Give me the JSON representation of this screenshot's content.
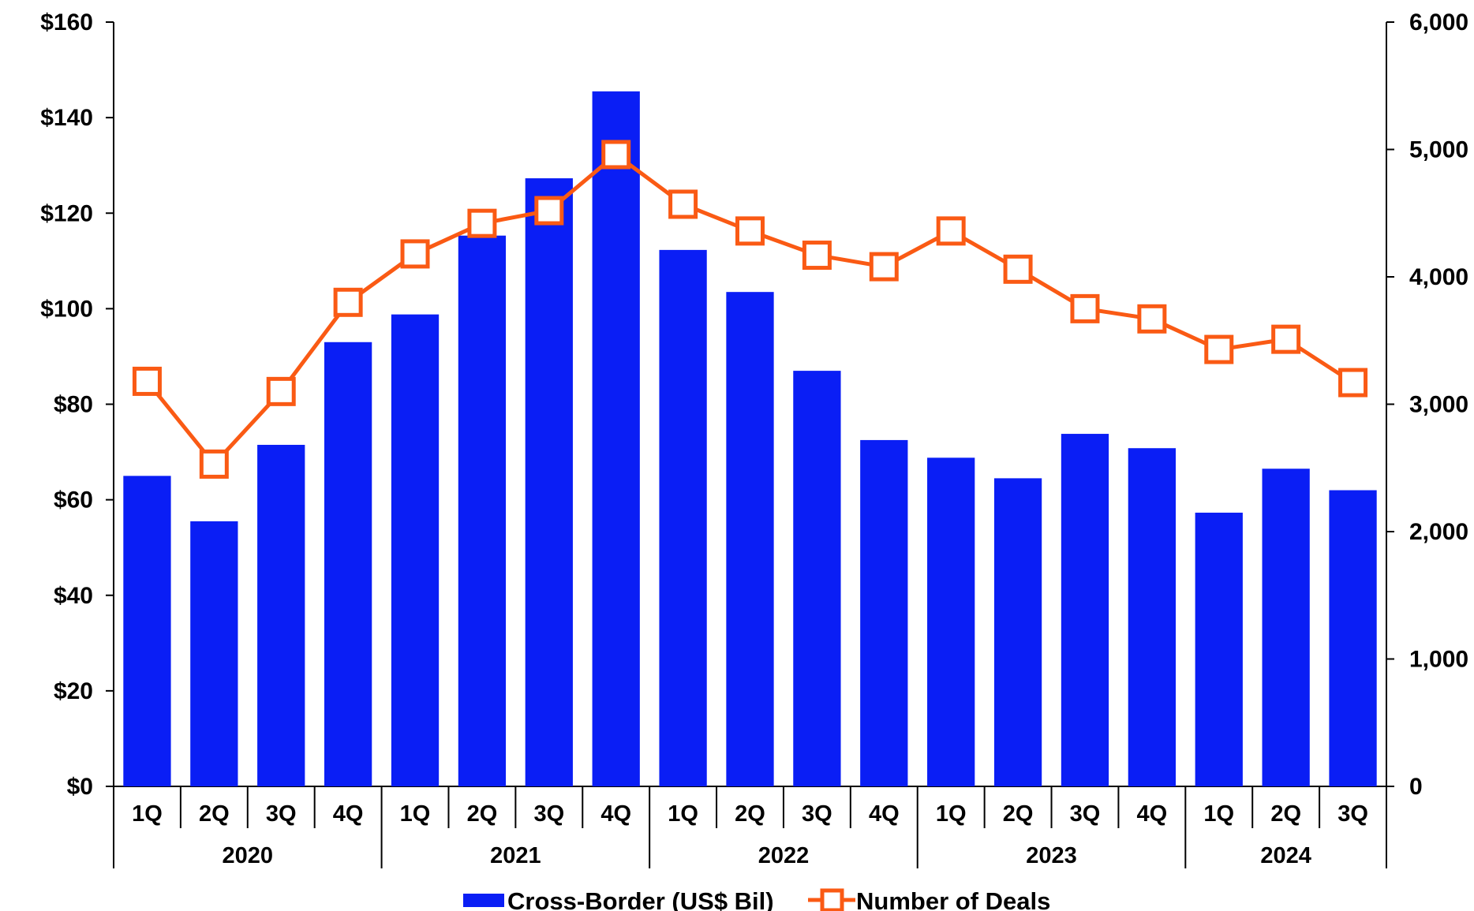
{
  "chart_data": {
    "type": "bar",
    "years": [
      "2020",
      "2021",
      "2022",
      "2023",
      "2024"
    ],
    "categories": [
      {
        "quarter": "1Q",
        "year": "2020"
      },
      {
        "quarter": "2Q",
        "year": "2020"
      },
      {
        "quarter": "3Q",
        "year": "2020"
      },
      {
        "quarter": "4Q",
        "year": "2020"
      },
      {
        "quarter": "1Q",
        "year": "2021"
      },
      {
        "quarter": "2Q",
        "year": "2021"
      },
      {
        "quarter": "3Q",
        "year": "2021"
      },
      {
        "quarter": "4Q",
        "year": "2021"
      },
      {
        "quarter": "1Q",
        "year": "2022"
      },
      {
        "quarter": "2Q",
        "year": "2022"
      },
      {
        "quarter": "3Q",
        "year": "2022"
      },
      {
        "quarter": "4Q",
        "year": "2022"
      },
      {
        "quarter": "1Q",
        "year": "2023"
      },
      {
        "quarter": "2Q",
        "year": "2023"
      },
      {
        "quarter": "3Q",
        "year": "2023"
      },
      {
        "quarter": "4Q",
        "year": "2023"
      },
      {
        "quarter": "1Q",
        "year": "2024"
      },
      {
        "quarter": "2Q",
        "year": "2024"
      },
      {
        "quarter": "3Q",
        "year": "2024"
      }
    ],
    "series": [
      {
        "name": "Cross-Border (US$ Bil)",
        "type": "bar",
        "axis": "left",
        "color": "#0a1ef5",
        "values": [
          65,
          55.5,
          71.5,
          93,
          98.8,
          115.3,
          127.3,
          145.5,
          112.3,
          103.5,
          87,
          72.5,
          68.8,
          64.5,
          73.8,
          70.8,
          57.3,
          66.5,
          62
        ]
      },
      {
        "name": "Number of Deals",
        "type": "line",
        "axis": "right",
        "color": "#fa5a14",
        "marker": "hollow-square",
        "values": [
          3180,
          2530,
          3100,
          3800,
          4180,
          4420,
          4520,
          4960,
          4570,
          4360,
          4170,
          4080,
          4360,
          4060,
          3750,
          3670,
          3430,
          3510,
          3170
        ]
      }
    ],
    "y_left": {
      "range": [
        0,
        160
      ],
      "ticks": [
        0,
        20,
        40,
        60,
        80,
        100,
        120,
        140,
        160
      ],
      "tick_labels": [
        "$0",
        "$20",
        "$40",
        "$60",
        "$80",
        "$100",
        "$120",
        "$140",
        "$160"
      ]
    },
    "y_right": {
      "range": [
        0,
        6000
      ],
      "ticks": [
        0,
        1000,
        2000,
        3000,
        4000,
        5000,
        6000
      ],
      "tick_labels": [
        "0",
        "1,000",
        "2,000",
        "3,000",
        "4,000",
        "5,000",
        "6,000"
      ]
    },
    "title": "",
    "xlabel": "",
    "ylabel": "",
    "grid": false,
    "legend_position": "bottom-center"
  }
}
